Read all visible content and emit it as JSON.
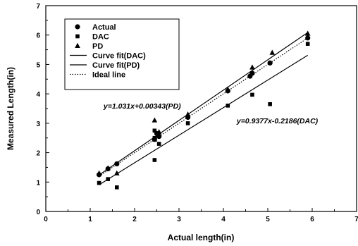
{
  "chart_data": {
    "type": "scatter",
    "xlabel": "Actual length(in)",
    "ylabel": "Measured Length(in)",
    "xlim": [
      0,
      7
    ],
    "ylim": [
      0,
      7
    ],
    "xticks": [
      "0",
      "1",
      "2",
      "3",
      "4",
      "5",
      "6",
      "7"
    ],
    "yticks": [
      "0",
      "1",
      "2",
      "3",
      "4",
      "5",
      "6",
      "7"
    ],
    "grid": false,
    "legend_position": "top-left",
    "series": [
      {
        "name": "Actual",
        "marker": "circle",
        "points": [
          [
            1.2,
            1.25
          ],
          [
            1.4,
            1.45
          ],
          [
            1.6,
            1.62
          ],
          [
            2.45,
            2.45
          ],
          [
            2.55,
            2.55
          ],
          [
            2.5,
            2.65
          ],
          [
            3.2,
            3.2
          ],
          [
            4.1,
            4.1
          ],
          [
            4.6,
            4.6
          ],
          [
            4.65,
            4.7
          ],
          [
            5.05,
            5.05
          ],
          [
            5.9,
            5.9
          ]
        ]
      },
      {
        "name": "DAC",
        "marker": "square",
        "points": [
          [
            1.2,
            0.97
          ],
          [
            1.4,
            1.1
          ],
          [
            1.6,
            0.82
          ],
          [
            2.45,
            1.75
          ],
          [
            2.45,
            2.5
          ],
          [
            2.55,
            2.3
          ],
          [
            2.45,
            2.75
          ],
          [
            3.2,
            3.0
          ],
          [
            4.1,
            3.6
          ],
          [
            4.65,
            3.97
          ],
          [
            5.05,
            3.65
          ],
          [
            5.9,
            5.7
          ]
        ]
      },
      {
        "name": "PD",
        "marker": "triangle",
        "points": [
          [
            1.2,
            1.3
          ],
          [
            1.4,
            1.47
          ],
          [
            1.6,
            1.3
          ],
          [
            2.45,
            3.1
          ],
          [
            2.45,
            2.45
          ],
          [
            2.55,
            2.7
          ],
          [
            3.2,
            3.3
          ],
          [
            4.1,
            4.15
          ],
          [
            4.65,
            4.9
          ],
          [
            5.1,
            5.4
          ],
          [
            5.9,
            6.05
          ]
        ]
      }
    ],
    "lines": [
      {
        "name": "Curve fit(DAC)",
        "style": "solid",
        "slope": 0.9377,
        "intercept": -0.2186,
        "x": [
          1.2,
          5.9
        ]
      },
      {
        "name": "Curve fit(PD)",
        "style": "solid",
        "slope": 1.031,
        "intercept": 0.00343,
        "x": [
          1.2,
          5.9
        ]
      },
      {
        "name": "Ideal line",
        "style": "dotted",
        "slope": 1,
        "intercept": 0,
        "x": [
          1.2,
          5.9
        ]
      }
    ],
    "annotations": [
      {
        "text": "y=1.031x+0.00343(PD)",
        "x": 1.3,
        "y": 3.5
      },
      {
        "text": "y=0.9377x-0.2186(DAC)",
        "x": 4.3,
        "y": 3.0
      }
    ]
  }
}
